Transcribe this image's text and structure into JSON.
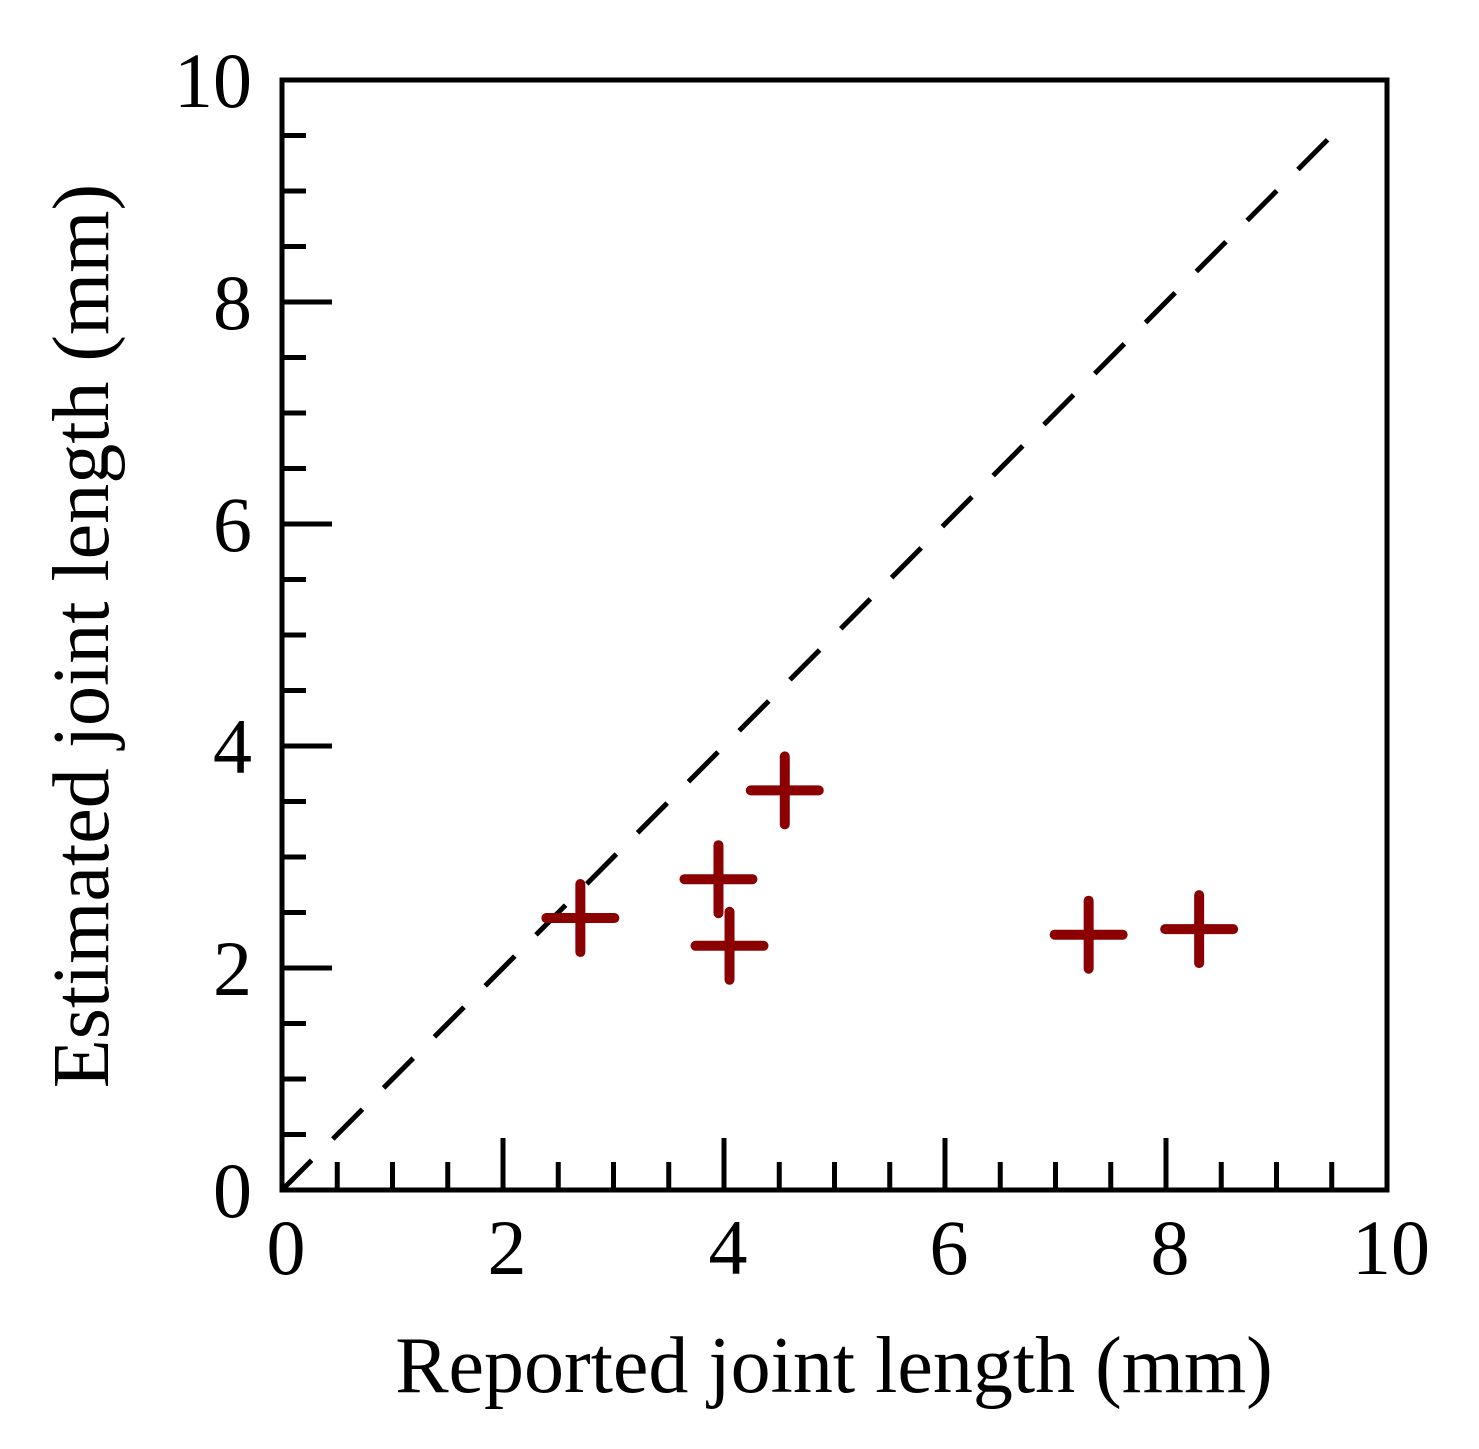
{
  "chart_data": {
    "type": "scatter",
    "title": "",
    "xlabel": "Reported joint length (mm)",
    "ylabel": "Estimated joint length (mm)",
    "xlim": [
      0,
      10
    ],
    "ylim": [
      0,
      10
    ],
    "x_ticks": [
      "0",
      "2",
      "4",
      "6",
      "8",
      "10"
    ],
    "y_ticks": [
      "0",
      "2",
      "4",
      "6",
      "8",
      "10"
    ],
    "x_minor_step": 0.5,
    "y_minor_step": 0.5,
    "grid": false,
    "legend": "none",
    "marker": "plus",
    "series": [
      {
        "color": "#8b0000",
        "x": [
          2.7,
          3.95,
          4.05,
          4.55,
          7.3,
          8.3
        ],
        "y": [
          2.45,
          2.8,
          2.2,
          3.6,
          2.3,
          2.35
        ]
      }
    ],
    "reference_line": {
      "style": "dashed",
      "color": "#000000",
      "x": [
        0,
        9.6
      ],
      "y": [
        0,
        9.6
      ]
    }
  }
}
